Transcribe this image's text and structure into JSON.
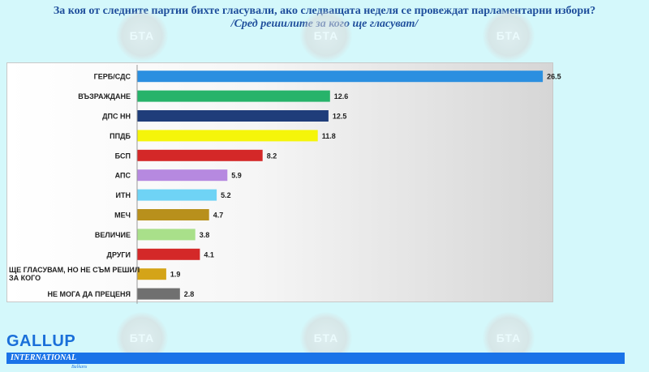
{
  "title_line1": "За коя от следните партии бихте гласували, ако следващата неделя се провеждат парламентарни избори?",
  "title_line2": "/Сред решилите за кого ще гласуват/",
  "watermark_text": "БТА",
  "logo": {
    "name": "GALLUP",
    "sub": "INTERNATIONAL",
    "region": "Balkans",
    "color": "#1a73e8"
  },
  "chart_data": {
    "type": "bar",
    "orientation": "horizontal",
    "categories": [
      "ГЕРБ/СДС",
      "ВЪЗРАЖДАНЕ",
      "ДПС НН",
      "ППДБ",
      "БСП",
      "АПС",
      "ИТН",
      "МЕЧ",
      "ВЕЛИЧИЕ",
      "ДРУГИ",
      "ЩЕ ГЛАСУВАМ, НО НЕ СЪМ РЕШИЛ ЗА КОГО",
      "НЕ МОГА ДА ПРЕЦЕНЯ"
    ],
    "values": [
      26.5,
      12.6,
      12.5,
      11.8,
      8.2,
      5.9,
      5.2,
      4.7,
      3.8,
      4.1,
      1.9,
      2.8
    ],
    "value_labels": [
      "26.5",
      "12.6",
      "12.5",
      "11.8",
      "8.2",
      "5.9",
      "5.2",
      "4.7",
      "3.8",
      "4.1",
      "1.9",
      "2.8"
    ],
    "colors": [
      "#2b8fe0",
      "#27b36a",
      "#1f3d7a",
      "#f5f50a",
      "#d42828",
      "#b689e0",
      "#6fd3f5",
      "#b8901c",
      "#a9e08a",
      "#d42828",
      "#d4a418",
      "#707070"
    ],
    "xlim": [
      0,
      27
    ],
    "grid": false,
    "legend": "none"
  }
}
